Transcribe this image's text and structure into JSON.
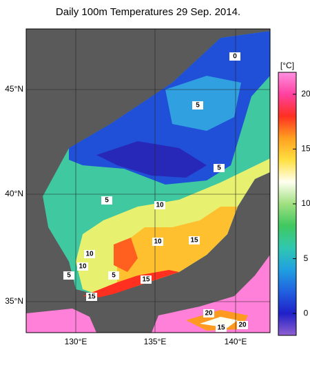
{
  "header": {
    "title": "Daily 100m Temperatures 29 Sep. 2014."
  },
  "map": {
    "lat_labels": [
      "45°N",
      "40°N",
      "35°N"
    ],
    "lon_labels": [
      "130°E",
      "135°E",
      "140°E"
    ],
    "contour_labels": [
      "0",
      "5",
      "5",
      "5",
      "10",
      "10",
      "10",
      "10",
      "15",
      "5",
      "5",
      "15",
      "15",
      "20",
      "20",
      "15"
    ]
  },
  "colorbar": {
    "label": "[°C]",
    "lim": [
      -2,
      22
    ],
    "ticks": [
      0,
      5,
      10,
      15,
      20
    ],
    "colors": [
      "#9060d0",
      "#2020c8",
      "#2060e0",
      "#20a0e0",
      "#30c8b0",
      "#40c860",
      "#a0e080",
      "#fffff0",
      "#ffe040",
      "#ffa020",
      "#ff3020",
      "#ff40a0",
      "#ff90e0"
    ]
  }
}
